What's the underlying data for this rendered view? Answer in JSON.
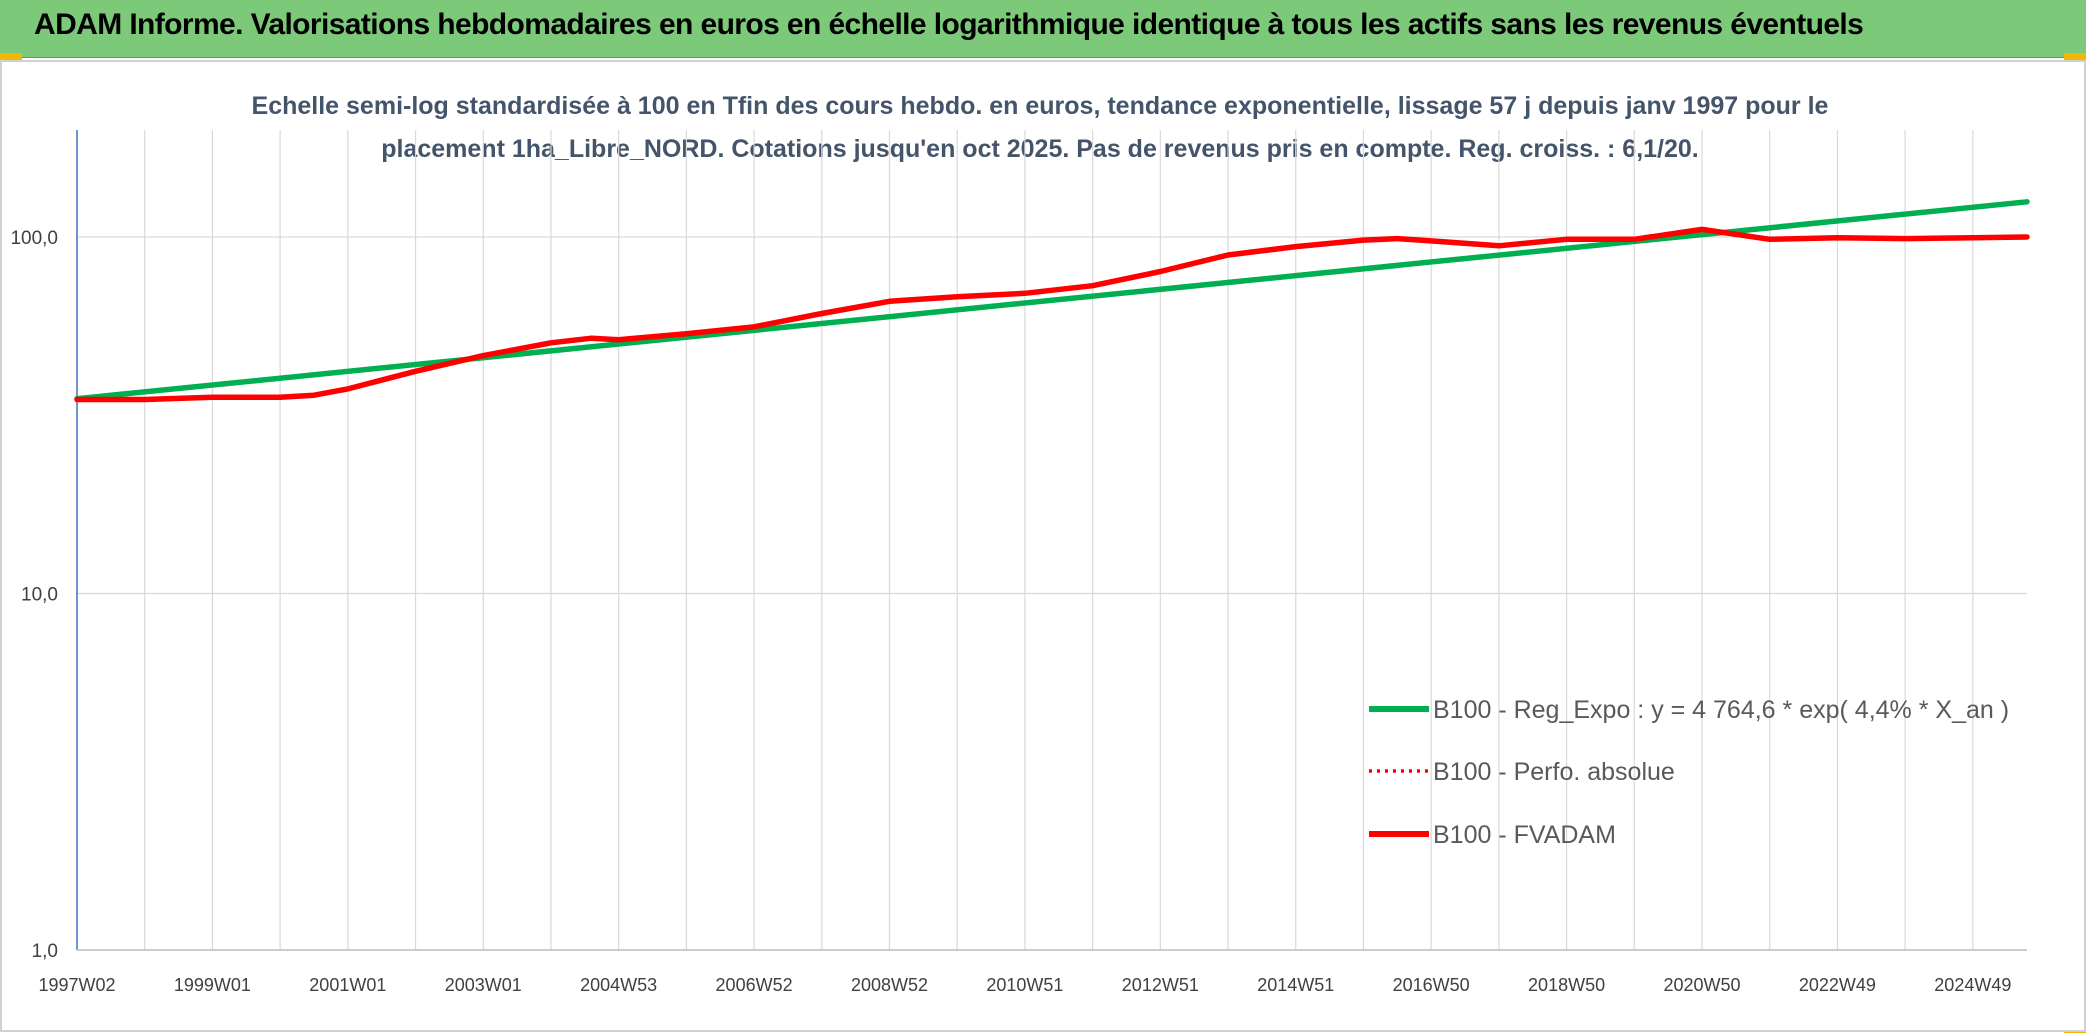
{
  "banner": {
    "title": "ADAM Informe. Valorisations hebdomadaires en euros en échelle logarithmique identique à tous les actifs sans les revenus éventuels",
    "background": "#7dc97a"
  },
  "chart_data": {
    "type": "line",
    "title_lines": [
      "Echelle semi-log standardisée à 100 en Tfin des cours hebdo. en euros, tendance exponentielle, lissage 57 j depuis janv 1997 pour le",
      "placement 1ha_Libre_NORD. Cotations jusqu'en oct 2025. Pas de revenus pris en compte. Reg. croiss. : 6,1/20."
    ],
    "yscale": "log",
    "ylim": [
      1,
      200
    ],
    "xlim": [
      1997.0,
      2025.8
    ],
    "yticks": [
      {
        "value": 1,
        "label": "1,0"
      },
      {
        "value": 10,
        "label": "10,0"
      },
      {
        "value": 100,
        "label": "100,0"
      }
    ],
    "xticks": [
      {
        "x": 1997.0,
        "label": "1997W02"
      },
      {
        "x": 1999.0,
        "label": "1999W01"
      },
      {
        "x": 2001.0,
        "label": "2001W01"
      },
      {
        "x": 2003.0,
        "label": "2003W01"
      },
      {
        "x": 2005.0,
        "label": "2004W53"
      },
      {
        "x": 2007.0,
        "label": "2006W52"
      },
      {
        "x": 2009.0,
        "label": "2008W52"
      },
      {
        "x": 2011.0,
        "label": "2010W51"
      },
      {
        "x": 2013.0,
        "label": "2012W51"
      },
      {
        "x": 2015.0,
        "label": "2014W51"
      },
      {
        "x": 2017.0,
        "label": "2016W50"
      },
      {
        "x": 2019.0,
        "label": "2018W50"
      },
      {
        "x": 2021.0,
        "label": "2020W50"
      },
      {
        "x": 2023.0,
        "label": "2022W49"
      },
      {
        "x": 2025.0,
        "label": "2024W49"
      }
    ],
    "minor_grid_step": 1,
    "legend_position": "bottom-right",
    "series": [
      {
        "name": "B100 - Reg_Expo : y = 4 764,6 * exp( 4,4% *  X_an )",
        "color": "#00b050",
        "dash": "solid",
        "x": [
          1997.0,
          2025.8
        ],
        "values": [
          35.2,
          125.5
        ]
      },
      {
        "name": "B100 - Perfo. absolue",
        "color": "#ff0000",
        "dash": "dotted",
        "x": [
          1997.0,
          1998.0,
          1999.0,
          2000.0,
          2000.5,
          2001.0,
          2002.0,
          2003.0,
          2004.0,
          2004.6,
          2005.0,
          2006.0,
          2007.0,
          2008.0,
          2009.0,
          2010.0,
          2011.0,
          2012.0,
          2013.0,
          2014.0,
          2015.0,
          2016.0,
          2016.5,
          2017.0,
          2018.0,
          2019.0,
          2020.0,
          2021.0,
          2022.0,
          2023.0,
          2024.0,
          2025.0,
          2025.8
        ],
        "values": [
          35.0,
          35.0,
          35.5,
          35.5,
          36.0,
          37.5,
          42.0,
          46.5,
          50.5,
          52.0,
          51.5,
          53.5,
          56.0,
          61.0,
          66.0,
          68.0,
          69.5,
          73.0,
          80.0,
          89.0,
          94.0,
          98.0,
          99.0,
          97.5,
          94.5,
          98.5,
          98.5,
          105.0,
          98.5,
          99.5,
          99.0,
          99.5,
          100.0
        ]
      },
      {
        "name": "B100 - FVADAM",
        "color": "#ff0000",
        "dash": "solid",
        "x": [
          1997.0,
          1998.0,
          1999.0,
          2000.0,
          2000.5,
          2001.0,
          2002.0,
          2003.0,
          2004.0,
          2004.6,
          2005.0,
          2006.0,
          2007.0,
          2008.0,
          2009.0,
          2010.0,
          2011.0,
          2012.0,
          2013.0,
          2014.0,
          2015.0,
          2016.0,
          2016.5,
          2017.0,
          2018.0,
          2019.0,
          2020.0,
          2021.0,
          2022.0,
          2023.0,
          2024.0,
          2025.0,
          2025.8
        ],
        "values": [
          35.0,
          35.0,
          35.5,
          35.5,
          36.0,
          37.5,
          42.0,
          46.5,
          50.5,
          52.0,
          51.5,
          53.5,
          56.0,
          61.0,
          66.0,
          68.0,
          69.5,
          73.0,
          80.0,
          89.0,
          94.0,
          98.0,
          99.0,
          97.5,
          94.5,
          98.5,
          98.5,
          105.0,
          98.5,
          99.5,
          99.0,
          99.5,
          100.0
        ]
      }
    ]
  }
}
